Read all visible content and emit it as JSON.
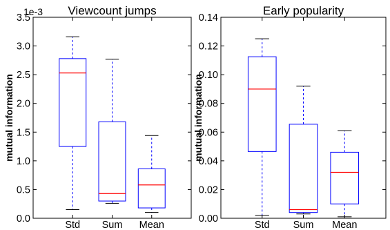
{
  "chart_data": [
    {
      "type": "boxplot",
      "title": "Viewcount jumps",
      "ylabel": "mutual information",
      "y_offset_label": "1e-3",
      "ylim": [
        0,
        3.5
      ],
      "yticks": [
        "0.0",
        "0.5",
        "1.0",
        "1.5",
        "2.0",
        "2.5",
        "3.0",
        "3.5"
      ],
      "categories": [
        "Std",
        "Sum",
        "Mean"
      ],
      "boxes": [
        {
          "min": 0.15,
          "q1": 1.25,
          "median": 2.53,
          "q3": 2.78,
          "max": 3.16
        },
        {
          "min": 0.26,
          "q1": 0.3,
          "median": 0.43,
          "q3": 1.68,
          "max": 2.77
        },
        {
          "min": 0.1,
          "q1": 0.18,
          "median": 0.58,
          "q3": 0.86,
          "max": 1.44
        }
      ],
      "colors": {
        "box": "#0000ff",
        "median": "#ff0000",
        "whisker": "#0000ff",
        "cap": "#000000"
      },
      "grid": false
    },
    {
      "type": "boxplot",
      "title": "Early popularity",
      "ylabel": "mutual information",
      "y_offset_label": "",
      "ylim": [
        0,
        0.14
      ],
      "yticks": [
        "0.00",
        "0.02",
        "0.04",
        "0.06",
        "0.08",
        "0.10",
        "0.12",
        "0.14"
      ],
      "categories": [
        "Std",
        "Sum",
        "Mean"
      ],
      "boxes": [
        {
          "min": 0.002,
          "q1": 0.0465,
          "median": 0.09,
          "q3": 0.1125,
          "max": 0.125
        },
        {
          "min": 0.003,
          "q1": 0.004,
          "median": 0.006,
          "q3": 0.0655,
          "max": 0.092
        },
        {
          "min": 0.001,
          "q1": 0.01,
          "median": 0.032,
          "q3": 0.046,
          "max": 0.061
        }
      ],
      "colors": {
        "box": "#0000ff",
        "median": "#ff0000",
        "whisker": "#0000ff",
        "cap": "#000000"
      },
      "grid": false
    }
  ]
}
